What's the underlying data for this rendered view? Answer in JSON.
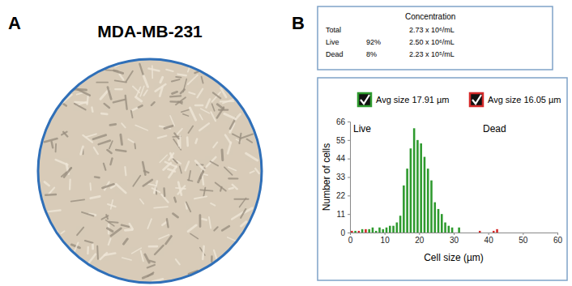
{
  "panel_a": {
    "label": "A",
    "title": "MDA-MB-231"
  },
  "panel_b": {
    "label": "B",
    "table": {
      "title": "Concentration",
      "rows": [
        [
          "Total",
          null,
          "2.73 x 10⁶/mL"
        ],
        [
          "Live",
          "92%",
          "2.50 x 10⁶/mL"
        ],
        [
          "Dead",
          "8%",
          "2.23 x 10⁵/mL"
        ]
      ]
    }
  },
  "chart_data": {
    "type": "histogram",
    "x_label": "Cell size (µm)",
    "y_label": "Number of cells",
    "bins": [
      0,
      1,
      2,
      3,
      4,
      5,
      6,
      7,
      8,
      9,
      10,
      11,
      12,
      13,
      14,
      15,
      16,
      17,
      18,
      19,
      20,
      21,
      22,
      23,
      24,
      25,
      26,
      27,
      28,
      29,
      30,
      31,
      32,
      33,
      34,
      35,
      36,
      37,
      38,
      39,
      40,
      41,
      42,
      43,
      44
    ],
    "xlim": [
      0,
      60
    ],
    "ylim": [
      0,
      66
    ],
    "xticks": [
      0,
      10,
      20,
      30,
      40,
      50,
      60
    ],
    "yticks": [
      0,
      11,
      22,
      33,
      44,
      55,
      66
    ],
    "grid": false,
    "series": [
      {
        "name": "Live",
        "color": "#2e9a2e",
        "avg_size_label": "Avg size 17.91 µm",
        "values": [
          0,
          1,
          0,
          2,
          0,
          2,
          3,
          1,
          3,
          2,
          3,
          4,
          4,
          6,
          10,
          28,
          38,
          50,
          62,
          55,
          53,
          45,
          38,
          31,
          18,
          14,
          11,
          6,
          4,
          3,
          0,
          3,
          0,
          0,
          0,
          0,
          0,
          0,
          0,
          0,
          0,
          0,
          0,
          0
        ]
      },
      {
        "name": "Dead",
        "color": "#d42a2a",
        "avg_size_label": "Avg size 16.05 µm",
        "values": [
          1,
          0,
          1,
          0,
          2,
          0,
          0,
          0,
          0,
          0,
          0,
          0,
          0,
          0,
          0,
          0,
          0,
          0,
          0,
          0,
          0,
          0,
          0,
          0,
          0,
          0,
          0,
          0,
          0,
          0,
          0,
          0,
          0,
          0,
          0,
          0,
          0,
          1,
          0,
          0,
          0,
          1,
          2,
          0
        ]
      }
    ]
  }
}
